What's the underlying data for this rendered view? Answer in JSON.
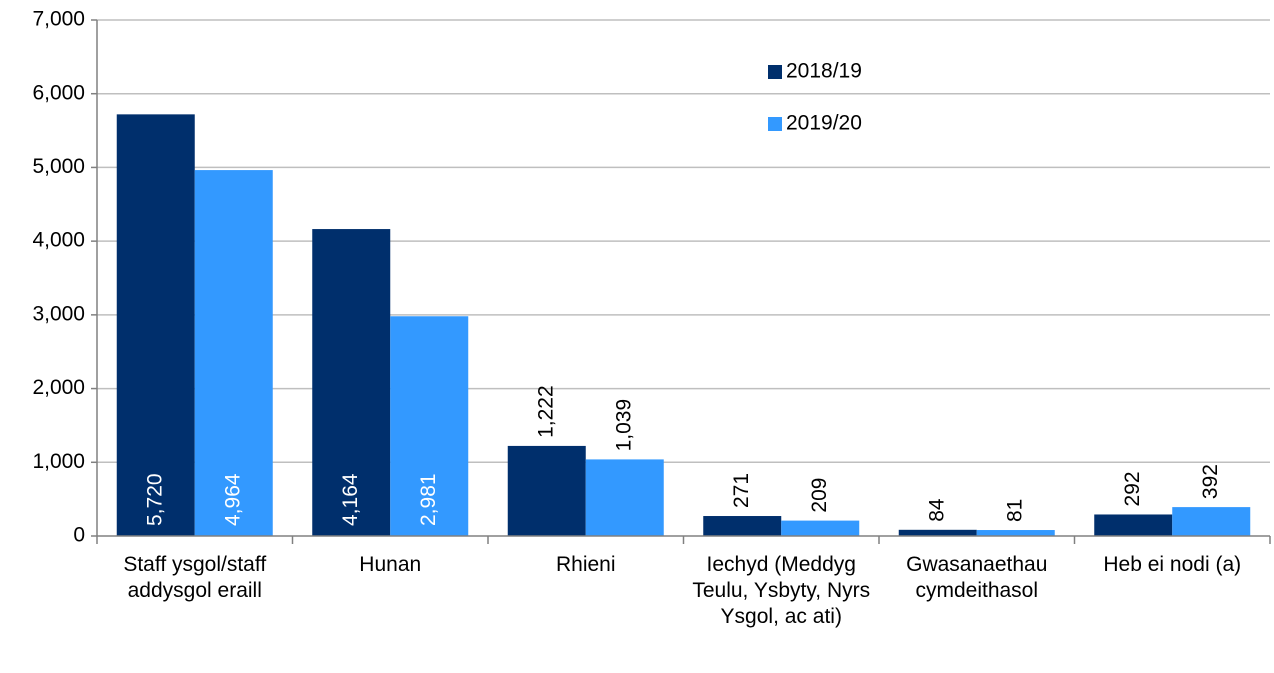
{
  "chart_data": {
    "type": "bar",
    "categories": [
      "Staff ysgol/staff addysgol eraill",
      "Hunan",
      "Rhieni",
      "Iechyd (Meddyg Teulu, Ysbyty, Nyrs Ysgol, ac ati)",
      "Gwasanaethau cymdeithasol",
      "Heb ei nodi (a)"
    ],
    "series": [
      {
        "name": "2018/19",
        "color": "#002f6c",
        "values": [
          5720,
          4164,
          1222,
          271,
          84,
          292
        ],
        "value_labels": [
          "5,720",
          "4,164",
          "1,222",
          "271",
          "84",
          "292"
        ]
      },
      {
        "name": "2019/20",
        "color": "#3399ff",
        "values": [
          4964,
          2981,
          1039,
          209,
          81,
          392
        ],
        "value_labels": [
          "4,964",
          "2,981",
          "1,039",
          "209",
          "81",
          "392"
        ]
      }
    ],
    "ylim": [
      0,
      7000
    ],
    "yticks": [
      {
        "value": 0,
        "label": "0"
      },
      {
        "value": 1000,
        "label": "1,000"
      },
      {
        "value": 2000,
        "label": "2,000"
      },
      {
        "value": 3000,
        "label": "3,000"
      },
      {
        "value": 4000,
        "label": "4,000"
      },
      {
        "value": 5000,
        "label": "5,000"
      },
      {
        "value": 6000,
        "label": "6,000"
      },
      {
        "value": 7000,
        "label": "7,000"
      }
    ],
    "grid": true,
    "legend": "top-right"
  }
}
